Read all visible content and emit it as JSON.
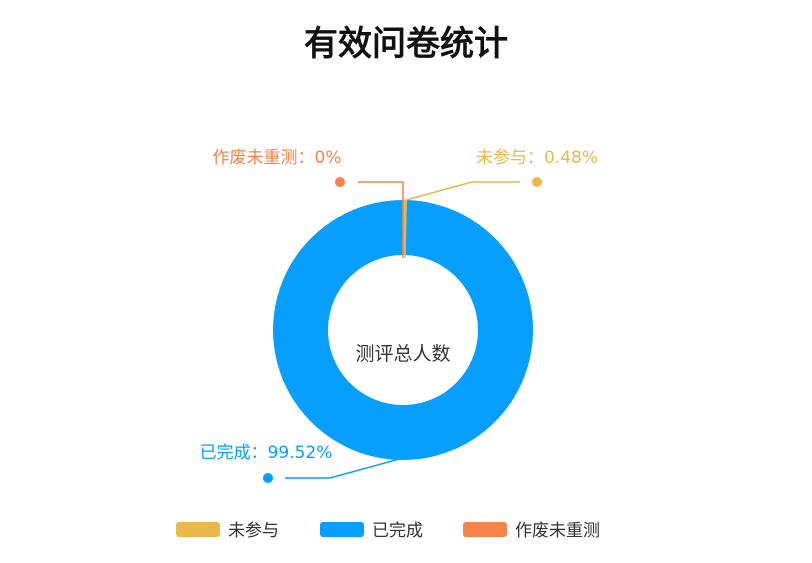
{
  "chart_data": {
    "type": "pie",
    "variant": "donut",
    "title": "有效问卷统计",
    "center_label": "测评总人数",
    "categories": [
      "未参与",
      "已完成",
      "作废未重测"
    ],
    "values": [
      0.48,
      99.52,
      0
    ],
    "unit": "%",
    "data_labels": [
      "未参与：0.48%",
      "已完成：99.52%",
      "作废未重测：0%"
    ],
    "colors": [
      "#E8B84A",
      "#069EFF",
      "#F5834A"
    ],
    "legend": {
      "position": "bottom",
      "entries": [
        "未参与",
        "已完成",
        "作废未重测"
      ]
    }
  }
}
